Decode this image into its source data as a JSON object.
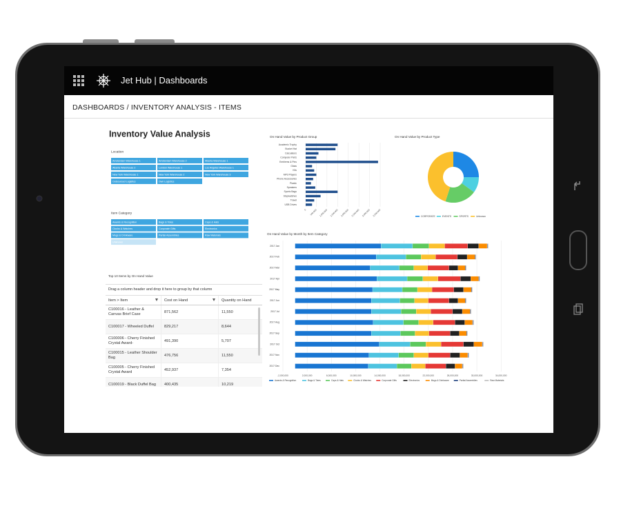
{
  "header": {
    "app_title": "Jet Hub | Dashboards"
  },
  "breadcrumb": "DASHBOARDS / INVENTORY ANALYSIS - ITEMS",
  "title": "Inventory Value Analysis",
  "location": {
    "label": "Location",
    "options": [
      "Amsterdam Warehouse 1",
      "Amsterdam Warehouse 2",
      "Atlanta Warehouse 1",
      "Atlanta Warehouse 2",
      "London Warehouse 1",
      "Los Angeles Warehouse 1",
      "New York Warehouse 1",
      "New York Warehouse 2",
      "New York Warehouse 3",
      "Outsourced Logistics",
      "Own Logistics"
    ]
  },
  "item_category": {
    "label": "Item Category",
    "options": [
      {
        "label": "Awards & Recognition",
        "selected": true
      },
      {
        "label": "Bags & Totes",
        "selected": true
      },
      {
        "label": "Caps & Hats",
        "selected": true
      },
      {
        "label": "Clocks & Watches",
        "selected": true
      },
      {
        "label": "Corporate Gifts",
        "selected": true
      },
      {
        "label": "Electronics",
        "selected": true
      },
      {
        "label": "Mugs & Drinkware",
        "selected": true
      },
      {
        "label": "Partial Assemblies",
        "selected": true
      },
      {
        "label": "Raw Materials",
        "selected": true
      },
      {
        "label": "Unknown",
        "selected": false
      }
    ]
  },
  "table": {
    "title": "Top 10 Items by On Hand Value",
    "group_hint": "Drag a column header and drop it here to group by that column",
    "columns": [
      "Item > Item",
      "Cost on Hand",
      "Quantity on Hand"
    ],
    "rows": [
      [
        "C100016 - Leather & Canvas Brief Case",
        "871,562",
        "11,550"
      ],
      [
        "C100017 - Wheeled Duffel",
        "829,217",
        "8,644"
      ],
      [
        "C100006 - Cherry Finished Crystal Award-",
        "491,390",
        "5,707"
      ],
      [
        "C100015 - Leather Shoulder Bag",
        "476,756",
        "11,550"
      ],
      [
        "C100005 - Cherry Finished Crystal Award",
        "452,937",
        "7,354"
      ],
      [
        "C100019 - Black Duffel Bag",
        "400,435",
        "10,219"
      ]
    ]
  },
  "charts": [
    {
      "type": "bar",
      "title": "On Hand Value by Product Group",
      "categories": [
        "Academic Trophy",
        "Bucket Hat",
        "Calculators",
        "Computer Parts",
        "Emblems & Pins",
        "Glass",
        "Kits",
        "MP3 Players",
        "Phone Accessories",
        "Plastic",
        "Speakers",
        "Sports Bags",
        "Stopwatches",
        "Travel",
        "USB Drives"
      ],
      "values": [
        1500000,
        1400000,
        600000,
        500000,
        3400000,
        300000,
        400000,
        500000,
        350000,
        250000,
        450000,
        1500000,
        700000,
        400000,
        300000
      ],
      "color": "#1f4e8c",
      "xlim": [
        0,
        3500000
      ],
      "xticks": [
        0,
        {
          "value": 500000,
          "label": "500,000"
        },
        {
          "value": 1000000,
          "label": "1,000,000"
        },
        {
          "value": 1500000,
          "label": "1,500,000"
        },
        {
          "value": 2000000,
          "label": "2,000,000"
        },
        {
          "value": 2500000,
          "label": "2,500,000"
        },
        {
          "value": 3000000,
          "label": "3,000,000"
        },
        {
          "value": 3500000,
          "label": "3,500,000"
        }
      ],
      "grid": true
    },
    {
      "type": "pie",
      "title": "On Hand Value by Product Type",
      "categories": [
        "CORPORATE",
        "EVENTS",
        "SPORTS",
        "Unknown"
      ],
      "values": [
        25,
        10,
        20,
        45
      ],
      "colors": [
        "#1e88e5",
        "#4dd0e1",
        "#66cc66",
        "#fbc02d"
      ],
      "donut": true,
      "legend": "bottom"
    },
    {
      "type": "stacked_bar",
      "title": "On Hand Value by Month by Item Category",
      "categories": [
        "2017 Jan",
        "2017 Feb",
        "2017 Mar",
        "2017 Apr",
        "2017 May",
        "2017 Jun",
        "2017 Jul",
        "2017 Aug",
        "2017 Sep",
        "2017 Oct",
        "2017 Nov",
        "2017 Dec"
      ],
      "series": [
        {
          "name": "Awards & Recognition",
          "color": "#1976d2",
          "values": [
            14200000,
            13400000,
            12400000,
            13500000,
            12800000,
            12600000,
            12600000,
            12900000,
            12600000,
            13900000,
            12200000,
            12100000
          ]
        },
        {
          "name": "Bags & Totes",
          "color": "#4dc3e0",
          "values": [
            5200000,
            4900000,
            4800000,
            5000000,
            4900000,
            4700000,
            4900000,
            5000000,
            4800000,
            5100000,
            4900000,
            4700000
          ]
        },
        {
          "name": "Caps & Hats",
          "color": "#5cc85c",
          "values": [
            2700000,
            2500000,
            2400000,
            2600000,
            2500000,
            2400000,
            2500000,
            2500000,
            2400000,
            2600000,
            2500000,
            2400000
          ]
        },
        {
          "name": "Clocks & Watches",
          "color": "#fbc02d",
          "values": [
            2600000,
            2400000,
            2300000,
            2500000,
            2400000,
            2300000,
            2400000,
            2400000,
            2300000,
            2500000,
            2400000,
            2300000
          ]
        },
        {
          "name": "Corporate Gifts",
          "color": "#e53935",
          "values": [
            3800000,
            3600000,
            3500000,
            3700000,
            3600000,
            3400000,
            3600000,
            3600000,
            3500000,
            3700000,
            3600000,
            3400000
          ]
        },
        {
          "name": "Electronics",
          "color": "#212121",
          "values": [
            1800000,
            1600000,
            1500000,
            1700000,
            1600000,
            1500000,
            1600000,
            1600000,
            1500000,
            1700000,
            1600000,
            1500000
          ]
        },
        {
          "name": "Mugs & Drinkware",
          "color": "#fb8c00",
          "values": [
            1400000,
            1300000,
            1200000,
            1300000,
            1300000,
            1200000,
            1300000,
            1300000,
            1200000,
            1400000,
            1300000,
            1200000
          ]
        },
        {
          "name": "Partial Assemblies",
          "color": "#1a3d7c",
          "values": [
            100000,
            100000,
            100000,
            100000,
            100000,
            100000,
            100000,
            100000,
            100000,
            100000,
            100000,
            100000
          ]
        },
        {
          "name": "Raw Materials",
          "color": "#bdbdbd",
          "values": [
            100000,
            100000,
            100000,
            100000,
            100000,
            100000,
            100000,
            100000,
            100000,
            100000,
            100000,
            100000
          ]
        }
      ],
      "xlim": [
        -2000000,
        35000000
      ],
      "xticks": [
        {
          "value": -2000000,
          "label": "-2,000,000"
        },
        {
          "value": 2000000,
          "label": "2,000,000"
        },
        {
          "value": 6000000,
          "label": "6,000,000"
        },
        {
          "value": 10000000,
          "label": "10,000,000"
        },
        {
          "value": 14000000,
          "label": "14,000,000"
        },
        {
          "value": 18000000,
          "label": "18,000,000"
        },
        {
          "value": 22000000,
          "label": "22,000,000"
        },
        {
          "value": 26000000,
          "label": "26,000,000"
        },
        {
          "value": 30000000,
          "label": "30,000,000"
        },
        {
          "value": 34000000,
          "label": "34,000,000"
        }
      ],
      "grid": true,
      "legend": "bottom"
    }
  ]
}
